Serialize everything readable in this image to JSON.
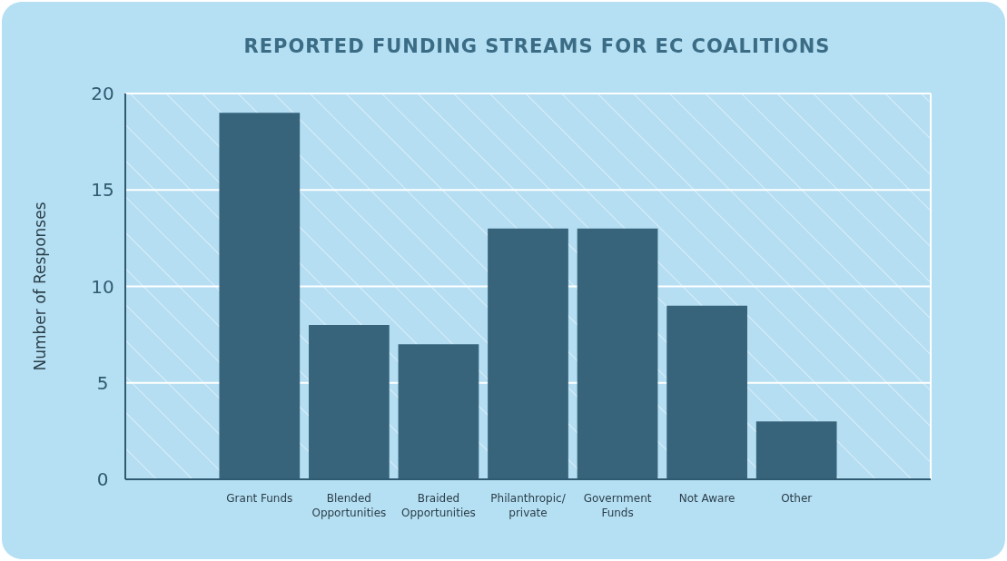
{
  "chart_data": {
    "type": "bar",
    "title": "REPORTED FUNDING STREAMS FOR EC COALITIONS",
    "ylabel": "Number of Responses",
    "categories": [
      null,
      "Grant Funds",
      "Blended Opportunities",
      "Braided Opportunities",
      "Philanthropic/ private",
      "Government Funds",
      "Not Aware",
      "Other",
      null
    ],
    "values": [
      null,
      19,
      8,
      7,
      13,
      13,
      9,
      3,
      null
    ],
    "color": "#37647b",
    "ylim": [
      0,
      20
    ],
    "yticks": [
      0,
      5,
      10,
      15,
      20
    ],
    "grid": "y"
  }
}
